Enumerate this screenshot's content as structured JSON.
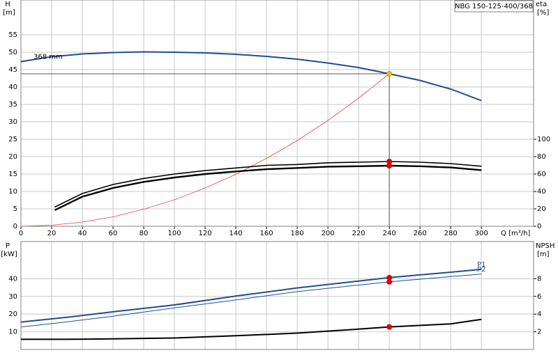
{
  "chart_data": [
    {
      "type": "line",
      "title": "NBG 150-125-400/368",
      "y_label": "H",
      "y_unit": "[m]",
      "y2_label": "eta",
      "y2_unit": "[%]",
      "x_label": "Q [m³/h]",
      "xlim": [
        0,
        334
      ],
      "xticks": [
        0,
        20,
        40,
        60,
        80,
        100,
        120,
        140,
        160,
        180,
        200,
        220,
        240,
        260,
        280,
        300
      ],
      "ylim": [
        0,
        65
      ],
      "yticks": [
        0,
        5,
        10,
        15,
        20,
        25,
        30,
        35,
        40,
        45,
        50,
        55
      ],
      "y2lim": [
        0,
        260
      ],
      "y2ticks": [
        0,
        20,
        40,
        60,
        80,
        100
      ],
      "grid": true,
      "series": [
        {
          "name": "368 mm",
          "color": "#1f4e8c",
          "width": 2,
          "x": [
            0,
            20,
            40,
            60,
            80,
            100,
            120,
            140,
            160,
            180,
            200,
            220,
            240,
            260,
            280,
            300
          ],
          "values": [
            47.3,
            48.7,
            49.5,
            49.9,
            50.1,
            50.0,
            49.8,
            49.4,
            48.8,
            48.0,
            46.9,
            45.6,
            43.8,
            41.9,
            39.4,
            36.1
          ]
        },
        {
          "color": "#f04040",
          "width": 0.8,
          "x": [
            0,
            20,
            40,
            60,
            80,
            100,
            120,
            140,
            160,
            180,
            200,
            220,
            240
          ],
          "values": [
            0,
            0.3,
            1.2,
            2.7,
            4.9,
            7.6,
            11,
            14.9,
            19.5,
            24.6,
            30.4,
            36.8,
            43.8
          ]
        },
        {
          "color": "#000000",
          "width": 1.6,
          "axis": "y2",
          "x": [
            22,
            40,
            60,
            80,
            100,
            120,
            140,
            160,
            180,
            200,
            220,
            240,
            260,
            280,
            300
          ],
          "values": [
            22,
            37.6,
            48,
            55,
            60,
            64,
            67,
            70,
            71,
            73,
            73.6,
            74.4,
            73.6,
            72,
            69
          ]
        },
        {
          "color": "#000000",
          "width": 2.4,
          "axis": "y2",
          "x": [
            22,
            40,
            60,
            80,
            100,
            120,
            140,
            160,
            180,
            200,
            220,
            240,
            260,
            280,
            300
          ],
          "values": [
            18.5,
            34,
            44,
            51,
            56,
            60,
            63,
            65.5,
            67,
            68.5,
            69,
            69.6,
            69,
            67.5,
            64.5
          ]
        }
      ],
      "markers": [
        {
          "x": 240,
          "y": 43.8,
          "color": "#f5c400",
          "guides": true
        },
        {
          "x": 240,
          "y": 74.4,
          "color": "#e00000",
          "axis": "y2"
        },
        {
          "x": 240,
          "y": 69.6,
          "color": "#e00000",
          "axis": "y2"
        }
      ]
    },
    {
      "type": "line",
      "y_label": "P",
      "y_unit": "[kW]",
      "y2_label": "NPSH",
      "y2_unit": "[m]",
      "xlim": [
        0,
        334
      ],
      "ylim": [
        0,
        61
      ],
      "yticks": [
        10,
        20,
        30,
        40
      ],
      "y2lim": [
        0,
        12.2
      ],
      "y2ticks": [
        2,
        4,
        6,
        8
      ],
      "grid": true,
      "series": [
        {
          "name": "P1",
          "color": "#1f4e8c",
          "width": 2,
          "x": [
            0,
            30,
            60,
            100,
            140,
            180,
            220,
            240,
            280,
            300
          ],
          "values": [
            15.5,
            18.2,
            21.3,
            25.2,
            30.2,
            34.8,
            38.7,
            40.6,
            43.7,
            45.3
          ]
        },
        {
          "name": "P2",
          "color": "#1f4e8c",
          "width": 1,
          "x": [
            0,
            30,
            60,
            100,
            140,
            180,
            220,
            240,
            280,
            300
          ],
          "values": [
            12.7,
            15.6,
            18.8,
            23.5,
            28,
            32.7,
            36.4,
            38.2,
            41.2,
            42.6
          ]
        },
        {
          "color": "#000000",
          "width": 2,
          "axis": "y2",
          "x": [
            0,
            30,
            60,
            100,
            140,
            180,
            220,
            240,
            280,
            300
          ],
          "values": [
            1.15,
            1.15,
            1.2,
            1.3,
            1.55,
            1.85,
            2.3,
            2.55,
            2.9,
            3.4
          ]
        }
      ],
      "markers": [
        {
          "x": 240,
          "y": 40.6,
          "color": "#e00000"
        },
        {
          "x": 240,
          "y": 38.2,
          "color": "#e00000"
        },
        {
          "x": 240,
          "y": 2.55,
          "color": "#e00000",
          "axis": "y2"
        }
      ]
    }
  ]
}
